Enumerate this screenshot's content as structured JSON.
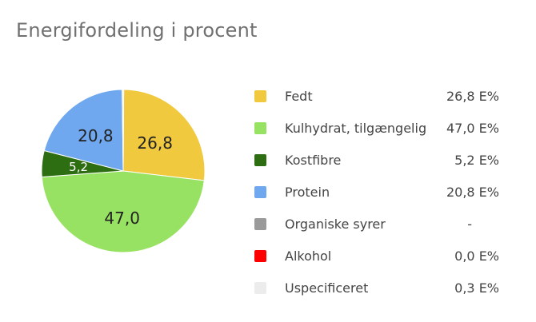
{
  "title": "Energifordeling i procent",
  "chart_data": {
    "type": "pie",
    "title": "Energifordeling i procent",
    "slices": [
      {
        "name": "Fedt",
        "value": 26.8,
        "label": "26,8",
        "value_text": "26,8 E%",
        "color": "#f0c93f"
      },
      {
        "name": "Kulhydrat, tilgængelig",
        "value": 47.0,
        "label": "47,0",
        "value_text": "47,0 E%",
        "color": "#97e262"
      },
      {
        "name": "Kostfibre",
        "value": 5.2,
        "label": "5,2",
        "value_text": "5,2 E%",
        "color": "#2e6e12"
      },
      {
        "name": "Protein",
        "value": 20.8,
        "label": "20,8",
        "value_text": "20,8 E%",
        "color": "#6fa8ee"
      },
      {
        "name": "Organiske syrer",
        "value": null,
        "label": "",
        "value_text": "-",
        "color": "#9a9a9a"
      },
      {
        "name": "Alkohol",
        "value": 0.0,
        "label": "",
        "value_text": "0,0 E%",
        "color": "#ff0000"
      },
      {
        "name": "Uspecificeret",
        "value": 0.3,
        "label": "",
        "value_text": "0,3 E%",
        "color": "#ececec"
      }
    ],
    "legend_position": "right"
  }
}
